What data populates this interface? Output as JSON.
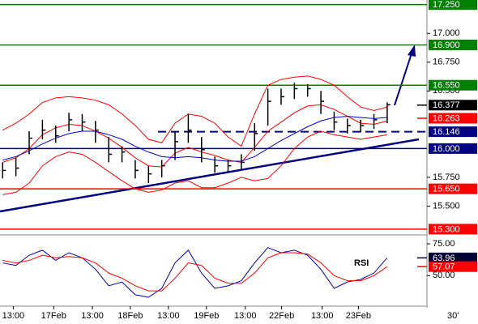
{
  "chart_data": [
    {
      "type": "ohlc",
      "x": [
        0,
        1,
        2,
        3,
        4,
        5,
        6,
        7,
        8,
        9,
        10,
        11,
        12,
        13,
        14,
        15,
        16,
        17,
        18,
        19,
        20,
        21,
        22,
        23,
        24,
        25,
        26,
        27,
        28,
        29
      ],
      "high": [
        15.88,
        15.92,
        16.15,
        16.25,
        16.2,
        16.31,
        16.3,
        16.24,
        16.1,
        16.02,
        15.9,
        15.85,
        15.9,
        16.15,
        16.3,
        16.1,
        15.93,
        15.9,
        15.95,
        16.22,
        16.52,
        16.52,
        16.57,
        16.56,
        16.5,
        16.32,
        16.26,
        16.25,
        16.3,
        16.4
      ],
      "low": [
        15.74,
        15.76,
        15.95,
        16.08,
        16.05,
        16.15,
        16.15,
        16.05,
        15.88,
        15.88,
        15.74,
        15.7,
        15.75,
        15.9,
        16.05,
        15.88,
        15.79,
        15.79,
        15.82,
        15.98,
        16.2,
        16.38,
        16.43,
        16.45,
        16.3,
        16.16,
        16.13,
        16.14,
        16.17,
        16.22
      ],
      "close": [
        15.81,
        15.83,
        16.09,
        16.16,
        16.11,
        16.25,
        16.23,
        16.16,
        15.95,
        15.97,
        15.81,
        15.78,
        15.85,
        16.06,
        16.16,
        15.99,
        15.85,
        15.85,
        15.88,
        16.13,
        16.41,
        16.45,
        16.52,
        16.52,
        16.41,
        16.23,
        16.2,
        16.2,
        16.25,
        16.38
      ],
      "color": "#000000",
      "series": [
        {
          "color": "#ff0000",
          "values": [
            16.16,
            16.22,
            16.3,
            16.4,
            16.44,
            16.45,
            16.44,
            16.42,
            16.38,
            16.3,
            16.2,
            16.08,
            16.05,
            16.22,
            16.3,
            16.28,
            16.22,
            16.1,
            16.02,
            16.3,
            16.55,
            16.6,
            16.62,
            16.63,
            16.6,
            16.55,
            16.45,
            16.36,
            16.33,
            16.36
          ]
        },
        {
          "color": "#ff0000",
          "values": [
            15.6,
            15.62,
            15.7,
            15.85,
            15.93,
            15.97,
            15.95,
            15.88,
            15.8,
            15.72,
            15.65,
            15.62,
            15.64,
            15.7,
            15.72,
            15.66,
            15.66,
            15.7,
            15.75,
            15.72,
            15.74,
            15.85,
            16.0,
            16.1,
            16.15,
            16.12,
            16.1,
            16.08,
            16.1,
            16.12
          ]
        },
        {
          "color": "#ff0000",
          "values": [
            15.88,
            15.92,
            16.0,
            16.12,
            16.18,
            16.21,
            16.2,
            16.15,
            16.09,
            16.01,
            15.92,
            15.85,
            15.84,
            15.96,
            16.01,
            15.97,
            15.94,
            15.9,
            15.88,
            16.01,
            16.15,
            16.23,
            16.31,
            16.37,
            16.38,
            16.34,
            16.28,
            16.22,
            16.21,
            16.24
          ]
        },
        {
          "color": "#0000cc",
          "values": [
            15.9,
            15.93,
            15.98,
            16.04,
            16.09,
            16.13,
            16.15,
            16.15,
            16.12,
            16.08,
            16.02,
            15.97,
            15.93,
            15.92,
            15.93,
            15.92,
            15.9,
            15.89,
            15.89,
            15.93,
            16.0,
            16.07,
            16.13,
            16.19,
            16.24,
            16.27,
            16.28,
            16.27,
            16.26,
            16.27
          ]
        }
      ],
      "xlim": [
        -0.2,
        32
      ],
      "xticks": [
        {
          "value": 0.8,
          "label": "13:00"
        },
        {
          "value": 3.85,
          "label": "17Feb"
        },
        {
          "value": 6.77,
          "label": "13:00"
        },
        {
          "value": 9.63,
          "label": "18Feb"
        },
        {
          "value": 12.5,
          "label": "13:00"
        },
        {
          "value": 15.37,
          "label": "19Feb"
        },
        {
          "value": 18.3,
          "label": "13:00"
        },
        {
          "value": 21.04,
          "label": "22Feb"
        },
        {
          "value": 24.1,
          "label": "13:00"
        },
        {
          "value": 26.83,
          "label": "23Feb"
        }
      ],
      "timeframe": "30'",
      "ylim": [
        15.25,
        17.29
      ],
      "yticks": [
        {
          "value": 17,
          "label": "17.000"
        },
        {
          "value": 16.75,
          "label": "16.750"
        },
        {
          "value": 16.5,
          "label": "16.500"
        },
        {
          "value": 15.75,
          "label": "15.750"
        },
        {
          "value": 15.5,
          "label": "15.500"
        }
      ],
      "levels": [
        {
          "value": 17.25,
          "label": "17.250",
          "color": "#008000",
          "dashed": false
        },
        {
          "value": 16.9,
          "label": "16.900",
          "color": "#008000",
          "dashed": false
        },
        {
          "value": 16.55,
          "label": "16.550",
          "color": "#008000",
          "dashed": false
        },
        {
          "value": 16.146,
          "label": "16.146",
          "color": "#000080",
          "dashed": true
        },
        {
          "value": 16.0,
          "label": "16.000",
          "color": "#000080",
          "dashed": false
        },
        {
          "value": 15.65,
          "label": "15.650",
          "color": "#ff0000",
          "dashed": false
        },
        {
          "value": 15.3,
          "label": "15.300",
          "color": "#ff0000",
          "dashed": false
        }
      ],
      "markers": [
        {
          "value": 16.377,
          "label": "16.377",
          "color": "#000000"
        },
        {
          "value": 16.263,
          "label": "16.263",
          "color": "#ff0000"
        }
      ]
    },
    {
      "type": "line",
      "title": "RSI",
      "x": [
        0,
        1,
        2,
        3,
        4,
        5,
        6,
        7,
        8,
        9,
        10,
        11,
        12,
        13,
        14,
        15,
        16,
        17,
        18,
        19,
        20,
        21,
        22,
        23,
        24,
        25,
        26,
        27,
        28,
        29
      ],
      "series": [
        {
          "color": "#0000aa",
          "values": [
            60,
            58,
            66,
            70,
            62,
            68,
            64,
            55,
            42,
            45,
            35,
            33,
            40,
            60,
            70,
            52,
            40,
            42,
            46,
            60,
            72,
            68,
            70,
            66,
            55,
            40,
            45,
            47,
            52,
            63.96
          ]
        },
        {
          "color": "#ff0000",
          "values": [
            62,
            60,
            62,
            66,
            64,
            65,
            64,
            60,
            52,
            48,
            42,
            38,
            38,
            48,
            60,
            58,
            48,
            44,
            44,
            52,
            64,
            68,
            68,
            67,
            60,
            50,
            46,
            46,
            50,
            57.07
          ]
        }
      ],
      "xlim": [
        -0.2,
        32
      ],
      "ylim": [
        26,
        82
      ],
      "yticks": [
        {
          "value": 75,
          "label": "75.00"
        },
        {
          "value": 50,
          "label": "50.00"
        }
      ],
      "markers": [
        {
          "value": 63.96,
          "label": "63.96",
          "color": "#000033"
        },
        {
          "value": 57.07,
          "label": "57.07",
          "color": "#ff0000"
        }
      ]
    }
  ]
}
